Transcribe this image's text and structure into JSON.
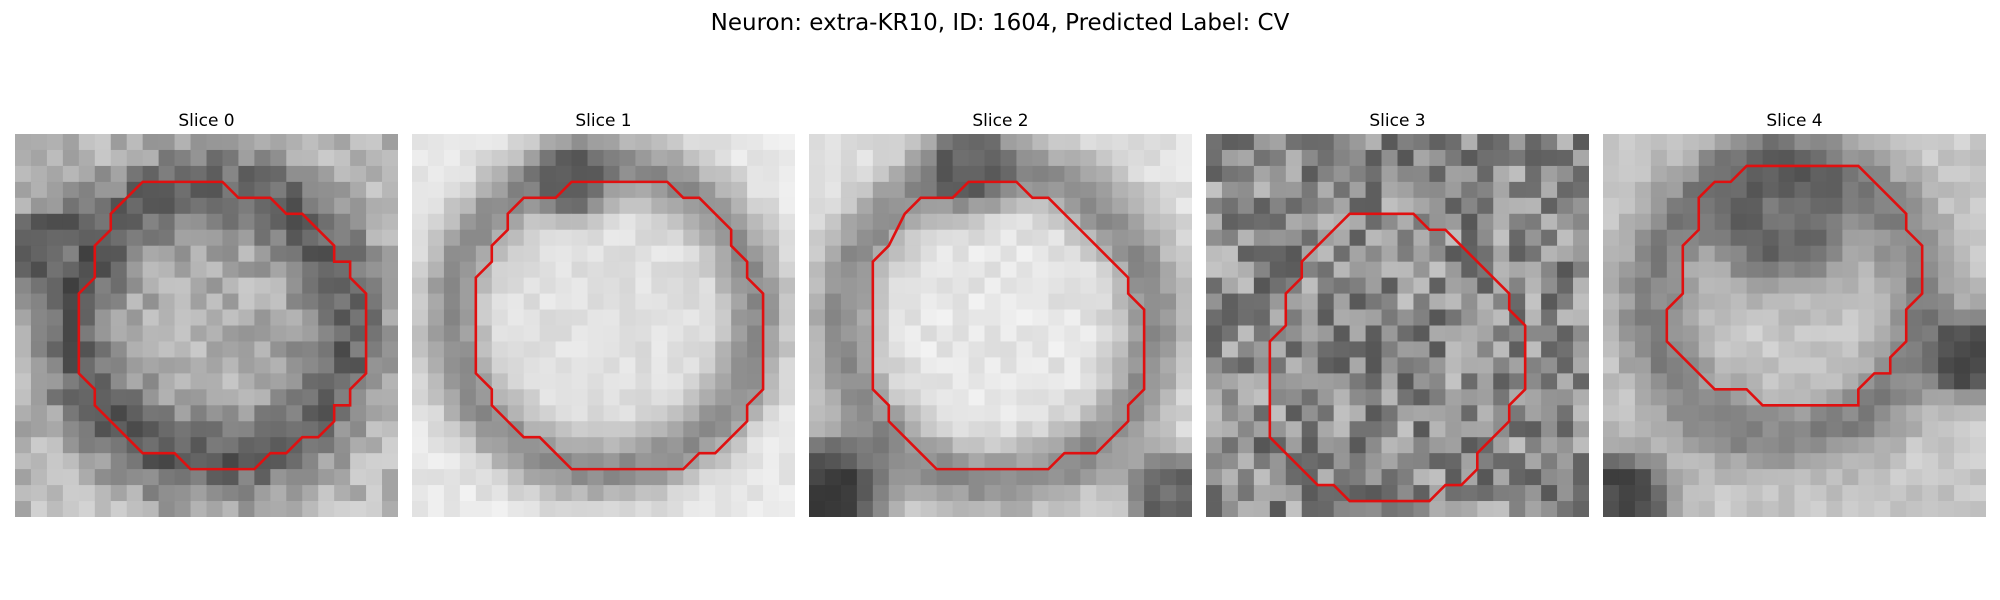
{
  "figure": {
    "title": "Neuron: extra-KR10, ID: 1604, Predicted Label: CV"
  },
  "panels": [
    {
      "title": "Slice 0"
    },
    {
      "title": "Slice 1"
    },
    {
      "title": "Slice 2"
    },
    {
      "title": "Slice 3"
    },
    {
      "title": "Slice 4"
    }
  ],
  "style": {
    "contour_color": "#e01010"
  }
}
